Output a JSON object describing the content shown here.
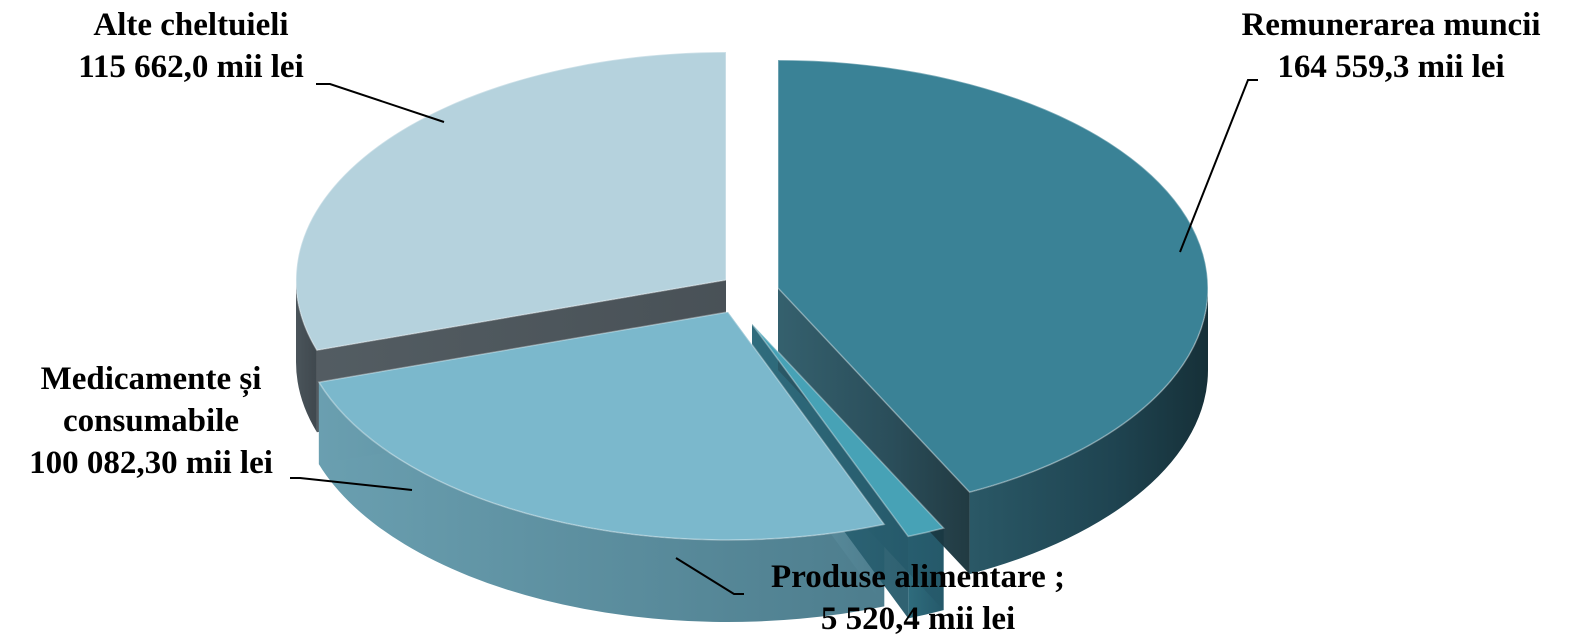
{
  "chart_data": {
    "type": "pie",
    "style": "3d-exploded",
    "slices": [
      {
        "key": "remunerare",
        "label": "Remunerarea muncii",
        "value": 164559.3,
        "value_text": "164 559,3 mii lei",
        "color": "#3a8296"
      },
      {
        "key": "produse",
        "label": "Produse alimentare ;",
        "value": 5520.4,
        "value_text": "5 520,4 mii lei",
        "color": "#47a2b6"
      },
      {
        "key": "medicamente",
        "label_lines": [
          "Medicamente și",
          "consumabile"
        ],
        "value": 100082.3,
        "value_text": "100 082,30 mii lei",
        "color": "#7bb8cc"
      },
      {
        "key": "alte",
        "label": "Alte cheltuieli",
        "value": 115662.0,
        "value_text": "115 662,0 mii lei",
        "color": "#b5d2dd"
      }
    ]
  }
}
